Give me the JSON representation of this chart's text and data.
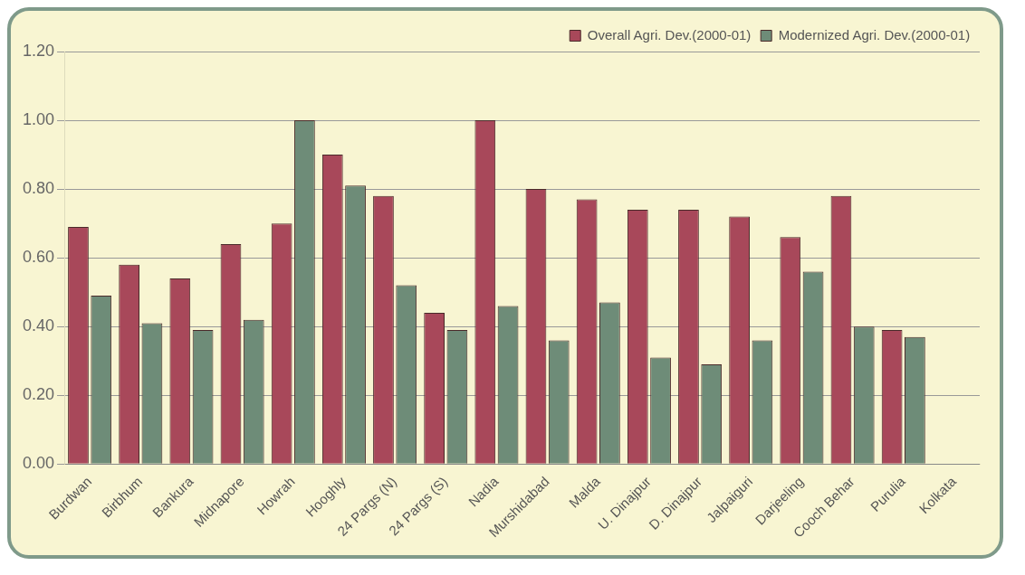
{
  "chart_data": {
    "type": "bar",
    "categories": [
      "Burdwan",
      "Birbhum",
      "Bankura",
      "Midnapore",
      "Howrah",
      "Hooghly",
      "24 Pargs (N)",
      "24 Pargs (S)",
      "Nadia",
      "Murshidabad",
      "Malda",
      "U. Dinajpur",
      "D. Dinajpur",
      "Jalpaiguri",
      "Darjeeling",
      "Cooch Behar",
      "Purulia",
      "Kolkata"
    ],
    "series": [
      {
        "name": "Overall Agri. Dev.(2000-01)",
        "color": "#a8485a",
        "values": [
          0.69,
          0.58,
          0.54,
          0.64,
          0.7,
          0.9,
          0.78,
          0.44,
          1.0,
          0.8,
          0.77,
          0.74,
          0.74,
          0.72,
          0.66,
          0.78,
          0.39,
          null
        ]
      },
      {
        "name": "Modernized Agri. Dev.(2000-01)",
        "color": "#6e8c78",
        "values": [
          0.49,
          0.41,
          0.39,
          0.42,
          1.0,
          0.81,
          0.52,
          0.39,
          0.46,
          0.36,
          0.47,
          0.31,
          0.29,
          0.36,
          0.56,
          0.4,
          0.37,
          null
        ]
      }
    ],
    "ylim": [
      0,
      1.2
    ],
    "yticks": [
      {
        "value": 0,
        "label": "0.00"
      },
      {
        "value": 0.2,
        "label": "0.20"
      },
      {
        "value": 0.4,
        "label": "0.40"
      },
      {
        "value": 0.6,
        "label": "0.60"
      },
      {
        "value": 0.8,
        "label": "0.80"
      },
      {
        "value": 1,
        "label": "1.00"
      },
      {
        "value": 1.2,
        "label": "1.20"
      }
    ],
    "grid": "y",
    "legend": "top right"
  }
}
